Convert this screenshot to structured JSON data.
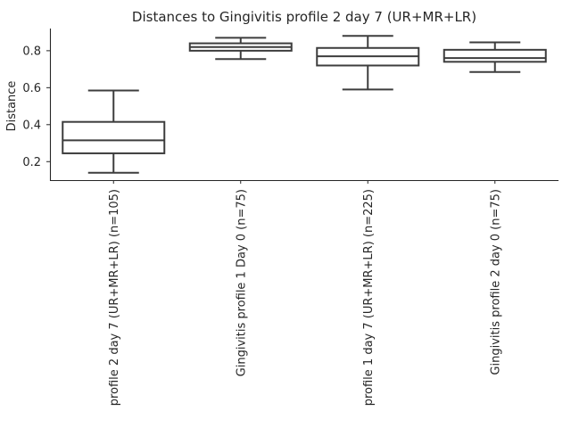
{
  "chart_data": {
    "type": "box",
    "title": "Distances to Gingivitis profile 2 day 7 (UR+MR+LR)",
    "xlabel": "",
    "ylabel": "Distance",
    "ylim": [
      0.1,
      0.92
    ],
    "yticks": [
      0.2,
      0.4,
      0.6,
      0.8
    ],
    "ytick_labels": [
      "0.2",
      "0.4",
      "0.6",
      "0.8"
    ],
    "categories": [
      "profile 2 day 7 (UR+MR+LR) (n=105)",
      "Gingivitis profile 1 Day 0 (n=75)",
      "profile 1 day 7 (UR+MR+LR) (n=225)",
      "Gingivitis profile 2 day 0 (n=75)"
    ],
    "boxes": [
      {
        "whisker_low": 0.14,
        "q1": 0.245,
        "median": 0.315,
        "q3": 0.415,
        "whisker_high": 0.585
      },
      {
        "whisker_low": 0.755,
        "q1": 0.8,
        "median": 0.82,
        "q3": 0.84,
        "whisker_high": 0.87
      },
      {
        "whisker_low": 0.59,
        "q1": 0.72,
        "median": 0.77,
        "q3": 0.815,
        "whisker_high": 0.88
      },
      {
        "whisker_low": 0.685,
        "q1": 0.74,
        "median": 0.76,
        "q3": 0.805,
        "whisker_high": 0.845
      }
    ],
    "grid": false,
    "legend": "none"
  }
}
